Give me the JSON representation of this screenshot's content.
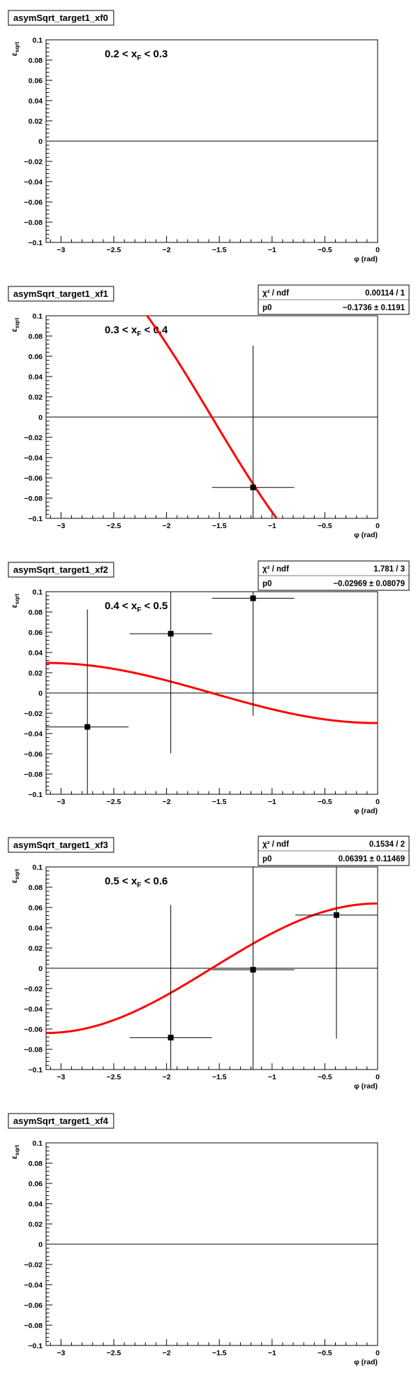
{
  "chart_data": [
    {
      "type": "scatter",
      "title": "asymSqrt_target1_xf0",
      "ylabel": "ε_sqrt",
      "xlabel": "φ (rad)",
      "range_label": {
        "lo": "0.2 < x",
        "sub": "F",
        "hi": " < 0.3"
      },
      "xlim": [
        -3.1416,
        0
      ],
      "ylim": [
        -0.1,
        0.1
      ],
      "xticks": [
        "−3",
        "−2.5",
        "−2",
        "−1.5",
        "−1",
        "−0.5",
        "0"
      ],
      "yticks": [
        "0.1",
        "0.08",
        "0.06",
        "0.04",
        "0.02",
        "0",
        "−0.02",
        "−0.04",
        "−0.06",
        "−0.08",
        "−0.1"
      ],
      "points": [],
      "fit": null,
      "stats": null
    },
    {
      "type": "scatter",
      "title": "asymSqrt_target1_xf1",
      "ylabel": "ε_sqrt",
      "xlabel": "φ (rad)",
      "range_label": {
        "lo": "0.3 < x",
        "sub": "F",
        "hi": " < 0.4"
      },
      "xlim": [
        -3.1416,
        0
      ],
      "ylim": [
        -0.1,
        0.1
      ],
      "xticks": [
        "−3",
        "−2.5",
        "−2",
        "−1.5",
        "−1",
        "−0.5",
        "0"
      ],
      "yticks": [
        "0.1",
        "0.08",
        "0.06",
        "0.04",
        "0.02",
        "0",
        "−0.02",
        "−0.04",
        "−0.06",
        "−0.08",
        "−0.1"
      ],
      "points": [
        {
          "x": -1.18,
          "y": -0.0695,
          "xerr": 0.39,
          "yerr": 0.14
        }
      ],
      "fit": {
        "function": "p0*cos(phi)",
        "p0": -0.1736
      },
      "stats": {
        "chi2_label": "χ² / ndf",
        "chi2_value": "0.00114 / 1",
        "p0_label": "p0",
        "p0_value": "−0.1736 ± 0.1191"
      }
    },
    {
      "type": "scatter",
      "title": "asymSqrt_target1_xf2",
      "ylabel": "ε_sqrt",
      "xlabel": "φ (rad)",
      "range_label": {
        "lo": "0.4 < x",
        "sub": "F",
        "hi": " < 0.5"
      },
      "xlim": [
        -3.1416,
        0
      ],
      "ylim": [
        -0.1,
        0.1
      ],
      "xticks": [
        "−3",
        "−2.5",
        "−2",
        "−1.5",
        "−1",
        "−0.5",
        "0"
      ],
      "yticks": [
        "0.1",
        "0.08",
        "0.06",
        "0.04",
        "0.02",
        "0",
        "−0.02",
        "−0.04",
        "−0.06",
        "−0.08",
        "−0.1"
      ],
      "points": [
        {
          "x": -2.75,
          "y": -0.0335,
          "xerr": 0.39,
          "yerr": 0.116
        },
        {
          "x": -1.96,
          "y": 0.0585,
          "xerr": 0.39,
          "yerr": 0.118
        },
        {
          "x": -1.18,
          "y": 0.0935,
          "xerr": 0.39,
          "yerr": 0.116
        }
      ],
      "fit": {
        "function": "p0*cos(phi)",
        "p0": -0.02969
      },
      "stats": {
        "chi2_label": "χ² / ndf",
        "chi2_value": "1.781 / 3",
        "p0_label": "p0",
        "p0_value": "−0.02969 ± 0.08079"
      }
    },
    {
      "type": "scatter",
      "title": "asymSqrt_target1_xf3",
      "ylabel": "ε_sqrt",
      "xlabel": "φ (rad)",
      "range_label": {
        "lo": "0.5 < x",
        "sub": "F",
        "hi": " < 0.6"
      },
      "xlim": [
        -3.1416,
        0
      ],
      "ylim": [
        -0.1,
        0.1
      ],
      "xticks": [
        "−3",
        "−2.5",
        "−2",
        "−1.5",
        "−1",
        "−0.5",
        "0"
      ],
      "yticks": [
        "0.1",
        "0.08",
        "0.06",
        "0.04",
        "0.02",
        "0",
        "−0.02",
        "−0.04",
        "−0.06",
        "−0.08",
        "−0.1"
      ],
      "points": [
        {
          "x": -1.96,
          "y": -0.0685,
          "xerr": 0.39,
          "yerr": 0.131
        },
        {
          "x": -1.18,
          "y": -0.0015,
          "xerr": 0.39,
          "yerr": 0.14
        },
        {
          "x": -0.39,
          "y": 0.0525,
          "xerr": 0.39,
          "yerr": 0.122
        }
      ],
      "fit": {
        "function": "p0*cos(phi)",
        "p0": 0.06391
      },
      "stats": {
        "chi2_label": "χ² / ndf",
        "chi2_value": "0.1534 / 2",
        "p0_label": "p0",
        "p0_value": "0.06391 ± 0.11469"
      }
    },
    {
      "type": "scatter",
      "title": "asymSqrt_target1_xf4",
      "ylabel": "ε_sqrt",
      "xlabel": "φ (rad)",
      "range_label": null,
      "xlim": [
        -3.1416,
        0
      ],
      "ylim": [
        -0.1,
        0.1
      ],
      "xticks": [
        "−3",
        "−2.5",
        "−2",
        "−1.5",
        "−1",
        "−0.5",
        "0"
      ],
      "yticks": [
        "0.1",
        "0.08",
        "0.06",
        "0.04",
        "0.02",
        "0",
        "−0.02",
        "−0.04",
        "−0.06",
        "−0.08",
        "−0.1"
      ],
      "points": [],
      "fit": null,
      "stats": null
    }
  ],
  "colors": {
    "fit_line": "#ff0000",
    "markers": "#000000",
    "frame": "#000000"
  }
}
